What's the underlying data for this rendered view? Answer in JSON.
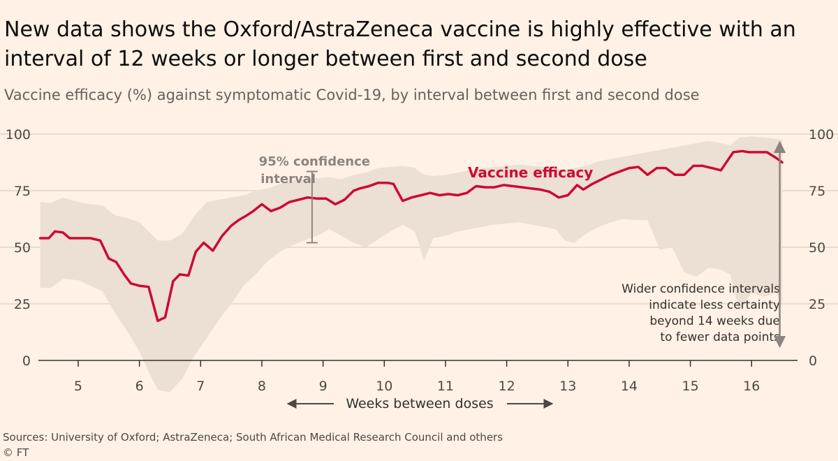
{
  "header": {
    "title": "New data shows the Oxford/AstraZeneca vaccine is highly effective with an interval of 12 weeks or longer between first and second dose",
    "subtitle": "Vaccine efficacy (%) against symptomatic Covid-19, by interval between first and second dose"
  },
  "footer": {
    "source": "Sources: University of Oxford; AstraZeneca; South African Medical Research Council and others",
    "copyright": "© FT"
  },
  "colors": {
    "background": "#fff1e5",
    "line": "#cc0a34",
    "band": "#ecdfd3",
    "grid": "#e2d4c7",
    "annotation": "#8c8480"
  },
  "chart_data": {
    "type": "line",
    "xlabel": "Weeks between doses",
    "ylabel": "",
    "xlim": [
      4.35,
      16.75
    ],
    "ylim": [
      0,
      100
    ],
    "x_ticks": [
      5,
      6,
      7,
      8,
      9,
      10,
      11,
      12,
      13,
      14,
      15,
      16
    ],
    "y_ticks": [
      0,
      25,
      50,
      75,
      100
    ],
    "grid": true,
    "series": [
      {
        "name": "Vaccine efficacy",
        "x": [
          4.38,
          4.52,
          4.62,
          4.75,
          4.86,
          5.0,
          5.2,
          5.36,
          5.5,
          5.62,
          5.75,
          5.86,
          6.0,
          6.15,
          6.3,
          6.42,
          6.55,
          6.66,
          6.8,
          6.92,
          7.05,
          7.2,
          7.35,
          7.5,
          7.62,
          7.75,
          7.86,
          8.0,
          8.15,
          8.3,
          8.45,
          8.6,
          8.75,
          8.9,
          9.05,
          9.2,
          9.35,
          9.5,
          9.6,
          9.75,
          9.9,
          10.05,
          10.15,
          10.3,
          10.45,
          10.6,
          10.75,
          10.9,
          11.05,
          11.2,
          11.35,
          11.5,
          11.65,
          11.8,
          11.95,
          12.1,
          12.25,
          12.4,
          12.55,
          12.7,
          12.85,
          13.0,
          13.15,
          13.25,
          13.4,
          13.55,
          13.7,
          13.85,
          14.0,
          14.15,
          14.3,
          14.45,
          14.6,
          14.75,
          14.9,
          15.05,
          15.2,
          15.35,
          15.5,
          15.7,
          15.85,
          15.95,
          16.1,
          16.25,
          16.4,
          16.5
        ],
        "y": [
          54,
          54,
          57,
          56.5,
          54,
          54,
          54,
          53,
          45,
          43.5,
          38,
          34,
          33,
          32.5,
          17.5,
          19,
          35,
          38,
          37.5,
          48,
          52,
          48.5,
          55,
          59.5,
          62,
          64,
          66,
          69,
          66,
          67.5,
          70,
          71,
          72,
          71.5,
          71.5,
          69,
          71,
          75,
          76,
          77,
          78.5,
          78.5,
          78,
          70.5,
          72,
          73,
          74,
          73,
          73.5,
          73,
          74,
          77,
          76.5,
          76.5,
          77.5,
          77,
          76.5,
          76,
          75.5,
          74.5,
          72,
          73,
          77.5,
          75.5,
          78,
          80,
          82,
          83.5,
          85,
          85.5,
          82,
          85,
          85,
          82,
          82,
          86,
          86,
          85,
          84,
          92,
          92.5,
          92,
          92,
          92,
          89.5,
          87.5
        ]
      }
    ],
    "band": {
      "name": "95% confidence interval",
      "x": [
        4.38,
        4.55,
        4.75,
        5.0,
        5.2,
        5.4,
        5.6,
        5.8,
        6.0,
        6.15,
        6.3,
        6.5,
        6.7,
        6.9,
        7.1,
        7.3,
        7.5,
        7.7,
        7.9,
        8.1,
        8.3,
        8.5,
        8.7,
        8.9,
        9.1,
        9.3,
        9.5,
        9.7,
        9.9,
        10.1,
        10.3,
        10.5,
        10.65,
        10.8,
        11.0,
        11.2,
        11.4,
        11.6,
        11.8,
        12.0,
        12.2,
        12.4,
        12.6,
        12.8,
        12.95,
        13.1,
        13.3,
        13.5,
        13.7,
        13.9,
        14.1,
        14.3,
        14.5,
        14.7,
        14.9,
        15.1,
        15.3,
        15.5,
        15.65,
        15.8,
        16.0,
        16.2,
        16.4,
        16.5
      ],
      "upper": [
        70,
        69.5,
        72,
        70,
        69,
        68.5,
        64,
        63,
        61,
        57,
        53,
        53,
        56,
        64,
        70,
        71,
        72,
        73,
        75,
        76,
        78,
        79.5,
        80,
        80.5,
        81,
        80,
        82,
        83,
        85,
        85.5,
        86,
        85,
        82,
        81.5,
        82,
        83,
        84,
        85,
        85.5,
        86,
        86.5,
        86,
        85.5,
        85,
        84,
        85,
        86,
        88,
        89,
        90,
        91,
        92,
        93,
        94,
        95,
        96,
        97,
        96,
        95,
        98.5,
        99,
        98.5,
        98,
        97.5
      ],
      "lower": [
        32,
        32,
        36,
        35.5,
        33,
        30.5,
        21,
        13,
        4,
        -5,
        -13,
        -14,
        -8,
        2,
        10,
        18,
        25,
        33,
        38,
        44,
        48,
        51,
        53,
        55,
        58,
        55,
        52,
        50,
        53.5,
        57,
        60,
        57,
        44,
        54,
        55,
        57,
        58,
        59,
        60,
        60.5,
        61,
        60,
        59,
        58,
        53,
        52,
        56,
        59,
        61,
        62.5,
        62,
        62,
        49,
        50,
        39,
        37,
        41,
        40,
        38,
        22,
        30,
        28,
        30,
        25
      ]
    },
    "annotations": {
      "ci_label_line1": "95% confidence",
      "ci_label_line2": "interval",
      "ci_example": {
        "x": 8.82,
        "low": 52,
        "high": 83.5
      },
      "series_label": "Vaccine efficacy",
      "note_lines": [
        "Wider confidence intervals",
        "indicate less certainty",
        "beyond 14 weeks due",
        "to fewer data points"
      ],
      "note_arrow": {
        "x": 16.46,
        "from": 96.5,
        "to": 6
      },
      "xlabel_arrows": true
    }
  }
}
